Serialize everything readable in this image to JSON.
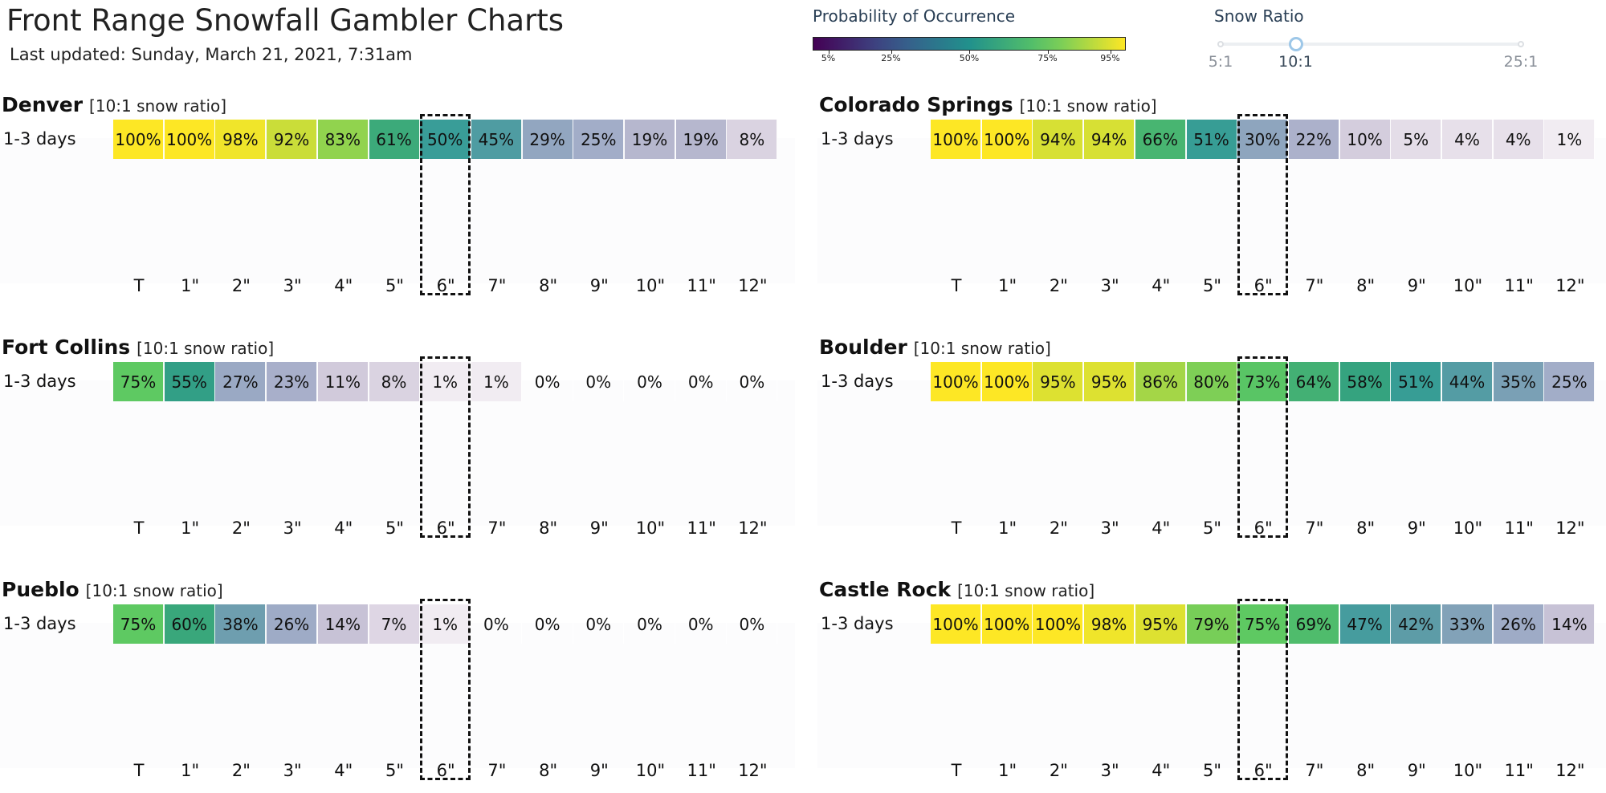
{
  "header": {
    "title": "Front Range Snowfall Gambler Charts",
    "updated": "Last updated: Sunday, March 21, 2021, 7:31am"
  },
  "legend": {
    "title": "Probability of Occurrence",
    "ticks": [
      "5%",
      "25%",
      "50%",
      "75%",
      "95%"
    ],
    "tick_values": [
      5,
      25,
      50,
      75,
      95
    ],
    "colorscale": [
      "#440154",
      "#3b528b",
      "#21918c",
      "#5ec962",
      "#fde725"
    ]
  },
  "snow_ratio": {
    "title": "Snow Ratio",
    "options": [
      "5:1",
      "10:1",
      "25:1"
    ],
    "option_values": [
      5,
      10,
      25
    ],
    "selected": "10:1",
    "selected_value": 10
  },
  "chart_data": {
    "type": "heatmap",
    "row_label": "1-3 days",
    "categories": [
      "T",
      "1\"",
      "2\"",
      "3\"",
      "4\"",
      "5\"",
      "6\"",
      "7\"",
      "8\"",
      "9\"",
      "10\"",
      "11\"",
      "12\""
    ],
    "highlight_category": "6\"",
    "panels": [
      {
        "name": "Denver",
        "note": "[10:1 snow ratio]",
        "values": [
          100,
          100,
          98,
          92,
          83,
          61,
          50,
          45,
          29,
          25,
          19,
          19,
          8
        ]
      },
      {
        "name": "Colorado Springs",
        "note": "[10:1 snow ratio]",
        "values": [
          100,
          100,
          94,
          94,
          66,
          51,
          30,
          22,
          10,
          5,
          4,
          4,
          1
        ]
      },
      {
        "name": "Fort Collins",
        "note": "[10:1 snow ratio]",
        "values": [
          75,
          55,
          27,
          23,
          11,
          8,
          1,
          1,
          0,
          0,
          0,
          0,
          0
        ]
      },
      {
        "name": "Boulder",
        "note": "[10:1 snow ratio]",
        "values": [
          100,
          100,
          95,
          95,
          86,
          80,
          73,
          64,
          58,
          51,
          44,
          35,
          25
        ]
      },
      {
        "name": "Pueblo",
        "note": "[10:1 snow ratio]",
        "values": [
          75,
          60,
          38,
          26,
          14,
          7,
          1,
          0,
          0,
          0,
          0,
          0,
          0
        ]
      },
      {
        "name": "Castle Rock",
        "note": "[10:1 snow ratio]",
        "values": [
          100,
          100,
          100,
          98,
          95,
          79,
          75,
          69,
          47,
          42,
          33,
          26,
          14
        ]
      }
    ]
  }
}
